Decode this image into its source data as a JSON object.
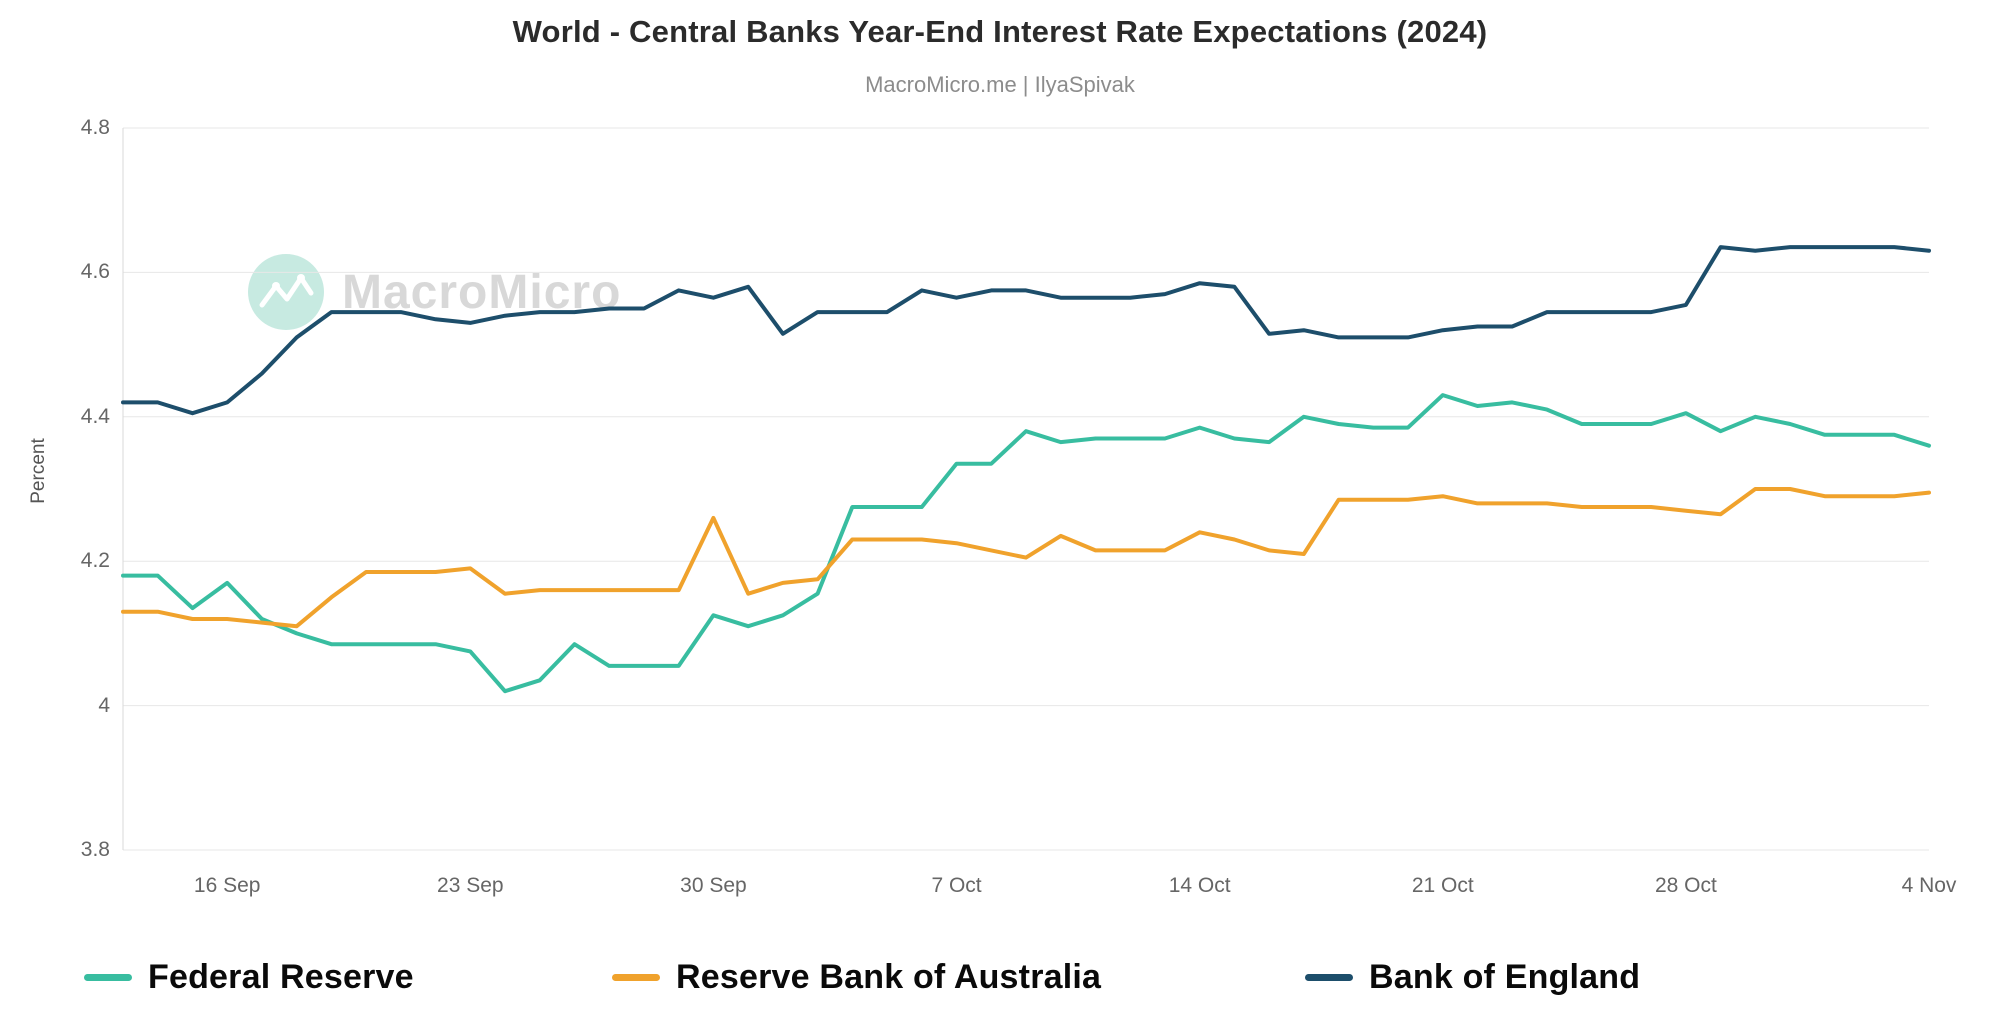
{
  "header": {
    "title": "World - Central Banks Year-End Interest Rate Expectations (2024)",
    "subtitle": "MacroMicro.me | IlyaSpivak"
  },
  "watermark": {
    "text": "MacroMicro"
  },
  "chart_data": {
    "type": "line",
    "title": "World - Central Banks Year-End Interest Rate Expectations (2024)",
    "subtitle": "MacroMicro.me | IlyaSpivak",
    "xlabel": "",
    "ylabel": "Percent",
    "ylim": [
      3.8,
      4.8
    ],
    "yticks": [
      3.8,
      4.0,
      4.2,
      4.4,
      4.6,
      4.8
    ],
    "ytick_labels": [
      "3.8",
      "4",
      "4.2",
      "4.4",
      "4.6",
      "4.8"
    ],
    "grid": "horizontal",
    "legend_position": "bottom",
    "x_tick_labels": [
      "16 Sep",
      "23 Sep",
      "30 Sep",
      "7 Oct",
      "14 Oct",
      "21 Oct",
      "28 Oct",
      "4 Nov"
    ],
    "x_tick_day_indices": [
      3,
      10,
      17,
      24,
      31,
      38,
      45,
      52
    ],
    "series": [
      {
        "name": "Federal Reserve",
        "color": "#38bda0",
        "values": [
          4.18,
          4.18,
          4.135,
          4.17,
          4.12,
          4.1,
          4.085,
          4.085,
          4.085,
          4.085,
          4.075,
          4.02,
          4.035,
          4.085,
          4.055,
          4.055,
          4.055,
          4.125,
          4.11,
          4.125,
          4.155,
          4.275,
          4.275,
          4.275,
          4.335,
          4.335,
          4.38,
          4.365,
          4.37,
          4.37,
          4.37,
          4.385,
          4.37,
          4.365,
          4.4,
          4.39,
          4.385,
          4.385,
          4.43,
          4.415,
          4.42,
          4.41,
          4.39,
          4.39,
          4.39,
          4.405,
          4.38,
          4.4,
          4.39,
          4.375,
          4.375,
          4.375,
          4.36
        ]
      },
      {
        "name": "Reserve Bank of Australia",
        "color": "#f0a22c",
        "values": [
          4.13,
          4.13,
          4.12,
          4.12,
          4.115,
          4.11,
          4.15,
          4.185,
          4.185,
          4.185,
          4.19,
          4.155,
          4.16,
          4.16,
          4.16,
          4.16,
          4.16,
          4.26,
          4.155,
          4.17,
          4.175,
          4.23,
          4.23,
          4.23,
          4.225,
          4.215,
          4.205,
          4.235,
          4.215,
          4.215,
          4.215,
          4.24,
          4.23,
          4.215,
          4.21,
          4.285,
          4.285,
          4.285,
          4.29,
          4.28,
          4.28,
          4.28,
          4.275,
          4.275,
          4.275,
          4.27,
          4.265,
          4.3,
          4.3,
          4.29,
          4.29,
          4.29,
          4.295
        ]
      },
      {
        "name": "Bank of England",
        "color": "#1d4e6b",
        "values": [
          4.42,
          4.42,
          4.405,
          4.42,
          4.46,
          4.51,
          4.545,
          4.545,
          4.545,
          4.535,
          4.53,
          4.54,
          4.545,
          4.545,
          4.55,
          4.55,
          4.575,
          4.565,
          4.58,
          4.515,
          4.545,
          4.545,
          4.545,
          4.575,
          4.565,
          4.575,
          4.575,
          4.565,
          4.565,
          4.565,
          4.57,
          4.585,
          4.58,
          4.515,
          4.52,
          4.51,
          4.51,
          4.51,
          4.52,
          4.525,
          4.525,
          4.545,
          4.545,
          4.545,
          4.545,
          4.555,
          4.635,
          4.63,
          4.635,
          4.635,
          4.635,
          4.635,
          4.63
        ]
      }
    ]
  }
}
